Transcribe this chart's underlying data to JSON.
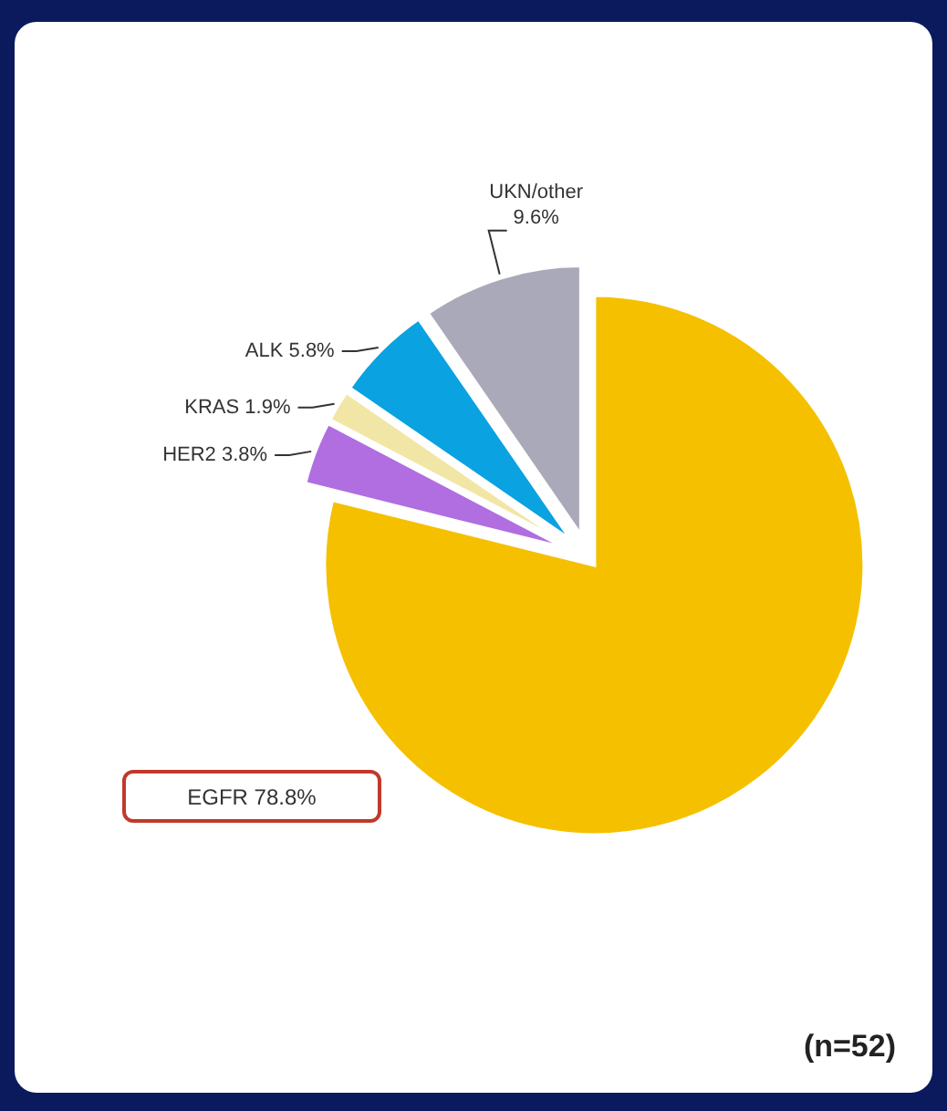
{
  "chart_data": {
    "type": "pie",
    "categories": [
      "EGFR",
      "HER2",
      "KRAS",
      "ALK",
      "UKN/other"
    ],
    "values": [
      78.8,
      3.8,
      1.9,
      5.8,
      9.6
    ],
    "value_labels": [
      "78.8%",
      "3.8%",
      "1.9%",
      "5.8%",
      "9.6%"
    ],
    "colors": [
      "#f5c000",
      "#b06ee0",
      "#f2e6a6",
      "#0aa2e0",
      "#a9a9b9"
    ],
    "annotations": [
      "(n=52)"
    ]
  }
}
